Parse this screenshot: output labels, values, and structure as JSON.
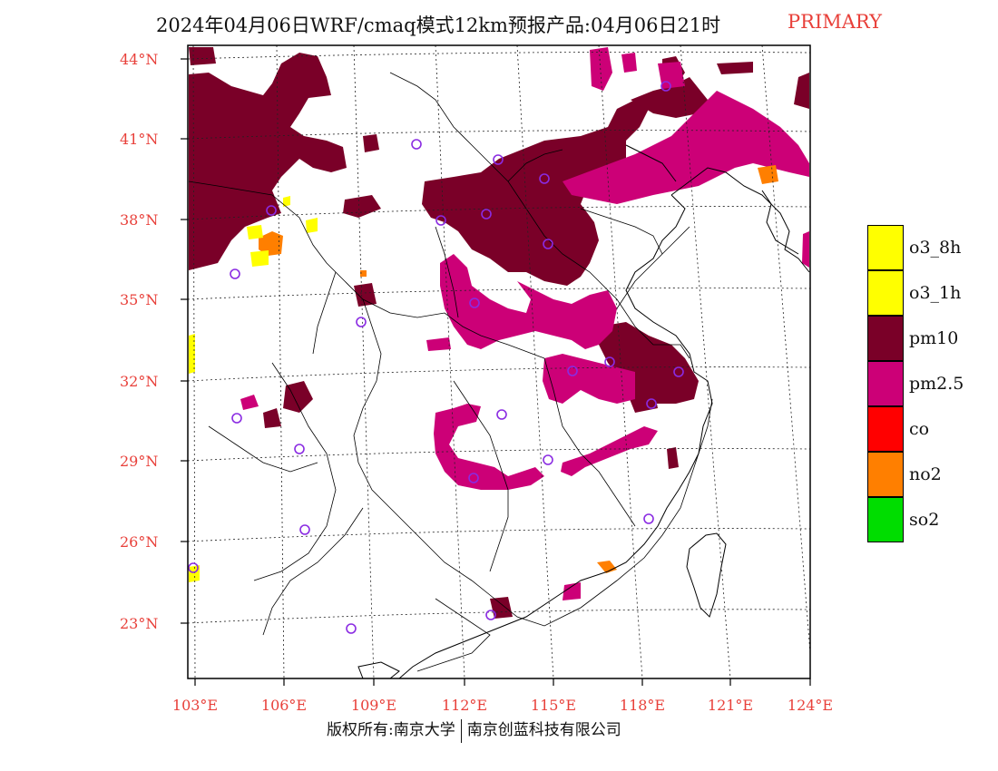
{
  "title": {
    "text": "2024年04月06日WRF/cmaq模式12km预报产品:04月06日21时",
    "highlight": "PRIMARY",
    "highlight_color": "#e8403a"
  },
  "axes": {
    "lat_labels": [
      "44°N",
      "41°N",
      "38°N",
      "35°N",
      "32°N",
      "29°N",
      "26°N",
      "23°N"
    ],
    "lon_labels": [
      "103°E",
      "106°E",
      "109°E",
      "112°E",
      "115°E",
      "118°E",
      "121°E",
      "124°E"
    ],
    "label_color": "#e8403a"
  },
  "legend": {
    "items": [
      {
        "label": "o3_8h",
        "color": "#ffff00"
      },
      {
        "label": "o3_1h",
        "color": "#ffff00"
      },
      {
        "label": "pm10",
        "color": "#7a0028"
      },
      {
        "label": "pm2.5",
        "color": "#cc0077"
      },
      {
        "label": "co",
        "color": "#ff0000"
      },
      {
        "label": "no2",
        "color": "#ff7f00"
      },
      {
        "label": "so2",
        "color": "#00dd00"
      }
    ]
  },
  "footer": {
    "left": "版权所有:南京大学",
    "right": "南京创蓝科技有限公司"
  },
  "map_colors": {
    "pm10": "#7a0028",
    "pm25": "#cc0077",
    "no2": "#ff7f00",
    "o3": "#ffff00",
    "station": "#8a2be2"
  }
}
